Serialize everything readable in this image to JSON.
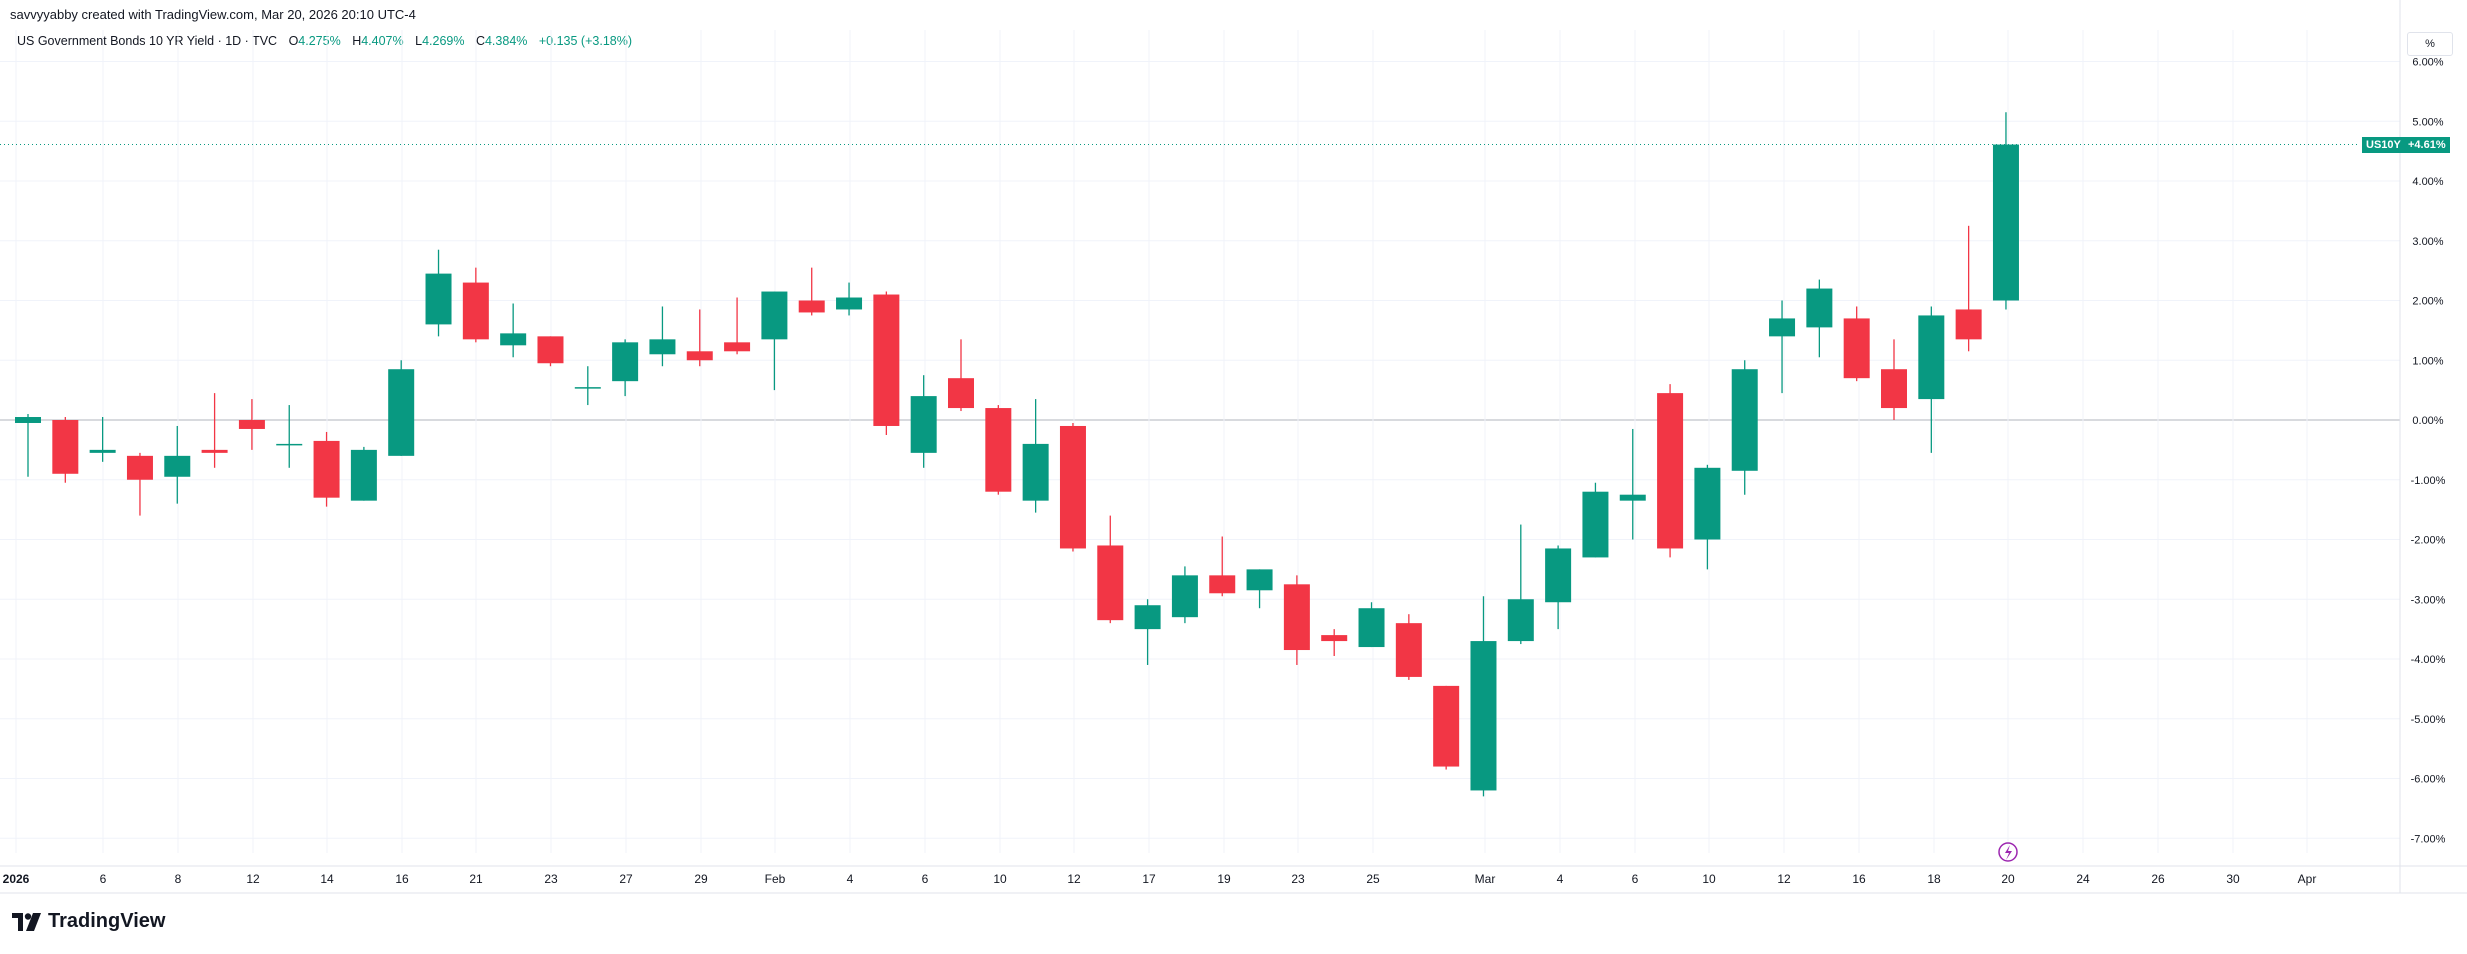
{
  "header": {
    "author_line": "savvyyabby created with TradingView.com, Mar 20, 2026 20:10 UTC-4",
    "symbol": "US Government Bonds 10 YR Yield · 1D · TVC",
    "open_label": "O",
    "open_value": "4.275%",
    "high_label": "H",
    "high_value": "4.407%",
    "low_label": "L",
    "low_value": "4.269%",
    "close_label": "C",
    "close_value": "4.384%",
    "change": "+0.135 (+3.18%)"
  },
  "unit_button": "%",
  "price_tag": {
    "symbol": "US10Y",
    "value": "+4.61%"
  },
  "brand": "TradingView",
  "colors": {
    "up": "#089981",
    "down": "#f23645",
    "grid": "#f0f3fa",
    "zero_line": "#b2b5be"
  },
  "chart_data": {
    "type": "candlestick",
    "y_unit": "percent change",
    "ylim": [
      -7.0,
      6.0
    ],
    "y_ticks": [
      "6.00%",
      "5.00%",
      "4.00%",
      "3.00%",
      "2.00%",
      "1.00%",
      "0.00%",
      "-1.00%",
      "-2.00%",
      "-3.00%",
      "-4.00%",
      "-5.00%",
      "-6.00%",
      "-7.00%"
    ],
    "x_tick_labels": [
      "2026",
      "6",
      "8",
      "12",
      "14",
      "16",
      "21",
      "23",
      "27",
      "29",
      "Feb",
      "4",
      "6",
      "10",
      "12",
      "17",
      "19",
      "23",
      "25",
      "Mar",
      "4",
      "6",
      "10",
      "12",
      "16",
      "18",
      "20",
      "24",
      "26",
      "30",
      "Apr"
    ],
    "highlighted_x_label": "20",
    "grid": true,
    "candles": [
      {
        "o": -0.05,
        "h": 0.1,
        "l": -0.95,
        "c": 0.05
      },
      {
        "o": 0.0,
        "h": 0.05,
        "l": -1.05,
        "c": -0.9
      },
      {
        "o": -0.55,
        "h": 0.05,
        "l": -0.7,
        "c": -0.5
      },
      {
        "o": -0.6,
        "h": -0.55,
        "l": -1.6,
        "c": -1.0
      },
      {
        "o": -0.95,
        "h": -0.1,
        "l": -1.4,
        "c": -0.6
      },
      {
        "o": -0.5,
        "h": 0.45,
        "l": -0.8,
        "c": -0.55
      },
      {
        "o": 0.0,
        "h": 0.35,
        "l": -0.5,
        "c": -0.15
      },
      {
        "o": -0.4,
        "h": 0.25,
        "l": -0.8,
        "c": -0.4
      },
      {
        "o": -0.35,
        "h": -0.2,
        "l": -1.45,
        "c": -1.3
      },
      {
        "o": -1.35,
        "h": -0.45,
        "l": -1.35,
        "c": -0.5
      },
      {
        "o": -0.6,
        "h": 1.0,
        "l": -0.6,
        "c": 0.85
      },
      {
        "o": 1.6,
        "h": 2.85,
        "l": 1.4,
        "c": 2.45
      },
      {
        "o": 2.3,
        "h": 2.55,
        "l": 1.3,
        "c": 1.35
      },
      {
        "o": 1.25,
        "h": 1.95,
        "l": 1.05,
        "c": 1.45
      },
      {
        "o": 1.4,
        "h": 1.4,
        "l": 0.9,
        "c": 0.95
      },
      {
        "o": 0.55,
        "h": 0.9,
        "l": 0.25,
        "c": 0.55
      },
      {
        "o": 0.65,
        "h": 1.35,
        "l": 0.4,
        "c": 1.3
      },
      {
        "o": 1.1,
        "h": 1.9,
        "l": 0.9,
        "c": 1.35
      },
      {
        "o": 1.15,
        "h": 1.85,
        "l": 0.9,
        "c": 1.0
      },
      {
        "o": 1.3,
        "h": 2.05,
        "l": 1.1,
        "c": 1.15
      },
      {
        "o": 1.35,
        "h": 2.15,
        "l": 0.5,
        "c": 2.15
      },
      {
        "o": 2.0,
        "h": 2.55,
        "l": 1.75,
        "c": 1.8
      },
      {
        "o": 1.85,
        "h": 2.3,
        "l": 1.75,
        "c": 2.05
      },
      {
        "o": 2.1,
        "h": 2.15,
        "l": -0.25,
        "c": -0.1
      },
      {
        "o": -0.55,
        "h": 0.75,
        "l": -0.8,
        "c": 0.4
      },
      {
        "o": 0.7,
        "h": 1.35,
        "l": 0.15,
        "c": 0.2
      },
      {
        "o": 0.2,
        "h": 0.25,
        "l": -1.25,
        "c": -1.2
      },
      {
        "o": -1.35,
        "h": 0.35,
        "l": -1.55,
        "c": -0.4
      },
      {
        "o": -0.1,
        "h": -0.05,
        "l": -2.2,
        "c": -2.15
      },
      {
        "o": -2.1,
        "h": -1.6,
        "l": -3.4,
        "c": -3.35
      },
      {
        "o": -3.5,
        "h": -3.0,
        "l": -4.1,
        "c": -3.1
      },
      {
        "o": -3.3,
        "h": -2.45,
        "l": -3.4,
        "c": -2.6
      },
      {
        "o": -2.6,
        "h": -1.95,
        "l": -2.95,
        "c": -2.9
      },
      {
        "o": -2.85,
        "h": -2.5,
        "l": -3.15,
        "c": -2.5
      },
      {
        "o": -2.75,
        "h": -2.6,
        "l": -4.1,
        "c": -3.85
      },
      {
        "o": -3.6,
        "h": -3.5,
        "l": -3.95,
        "c": -3.7
      },
      {
        "o": -3.8,
        "h": -3.05,
        "l": -3.8,
        "c": -3.15
      },
      {
        "o": -3.4,
        "h": -3.25,
        "l": -4.35,
        "c": -4.3
      },
      {
        "o": -4.45,
        "h": -4.45,
        "l": -5.85,
        "c": -5.8
      },
      {
        "o": -6.2,
        "h": -2.95,
        "l": -6.3,
        "c": -3.7
      },
      {
        "o": -3.7,
        "h": -1.75,
        "l": -3.75,
        "c": -3.0
      },
      {
        "o": -3.05,
        "h": -2.1,
        "l": -3.5,
        "c": -2.15
      },
      {
        "o": -2.3,
        "h": -1.05,
        "l": -2.3,
        "c": -1.2
      },
      {
        "o": -1.35,
        "h": -0.15,
        "l": -2.0,
        "c": -1.25
      },
      {
        "o": 0.45,
        "h": 0.6,
        "l": -2.3,
        "c": -2.15
      },
      {
        "o": -2.0,
        "h": -0.75,
        "l": -2.5,
        "c": -0.8
      },
      {
        "o": -0.85,
        "h": 1.0,
        "l": -1.25,
        "c": 0.85
      },
      {
        "o": 1.4,
        "h": 2.0,
        "l": 0.45,
        "c": 1.7
      },
      {
        "o": 1.55,
        "h": 2.35,
        "l": 1.05,
        "c": 2.2
      },
      {
        "o": 1.7,
        "h": 1.9,
        "l": 0.65,
        "c": 0.7
      },
      {
        "o": 0.85,
        "h": 1.35,
        "l": 0.0,
        "c": 0.2
      },
      {
        "o": 0.35,
        "h": 1.9,
        "l": -0.55,
        "c": 1.75
      },
      {
        "o": 1.85,
        "h": 3.25,
        "l": 1.15,
        "c": 1.35
      },
      {
        "o": 2.0,
        "h": 5.15,
        "l": 1.85,
        "c": 4.61
      }
    ]
  }
}
